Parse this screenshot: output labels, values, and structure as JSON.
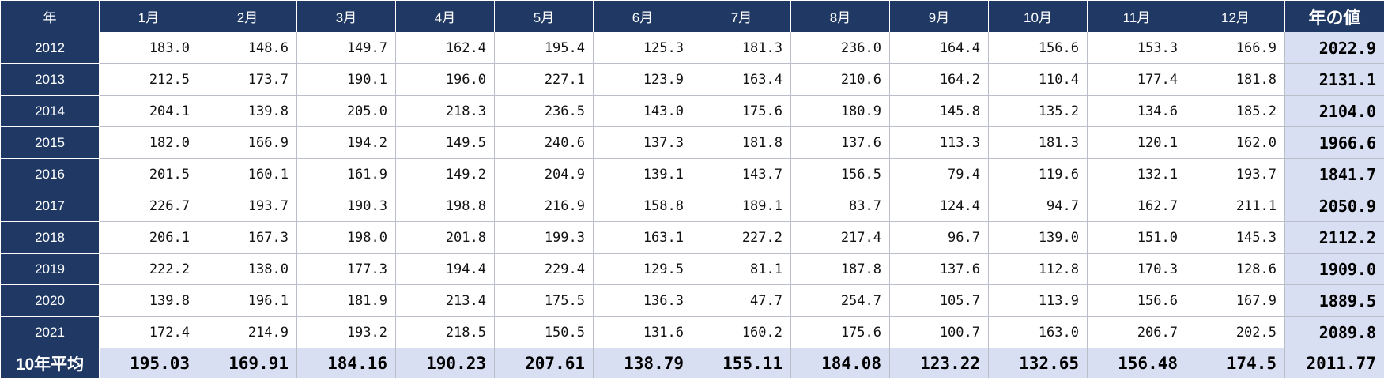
{
  "header": {
    "year_label": "年",
    "months": [
      "1月",
      "2月",
      "3月",
      "4月",
      "5月",
      "6月",
      "7月",
      "8月",
      "9月",
      "10月",
      "11月",
      "12月"
    ],
    "total_label": "年の値"
  },
  "rows": [
    {
      "year": "2012",
      "values": [
        "183.0",
        "148.6",
        "149.7",
        "162.4",
        "195.4",
        "125.3",
        "181.3",
        "236.0",
        "164.4",
        "156.6",
        "153.3",
        "166.9"
      ],
      "total": "2022.9"
    },
    {
      "year": "2013",
      "values": [
        "212.5",
        "173.7",
        "190.1",
        "196.0",
        "227.1",
        "123.9",
        "163.4",
        "210.6",
        "164.2",
        "110.4",
        "177.4",
        "181.8"
      ],
      "total": "2131.1"
    },
    {
      "year": "2014",
      "values": [
        "204.1",
        "139.8",
        "205.0",
        "218.3",
        "236.5",
        "143.0",
        "175.6",
        "180.9",
        "145.8",
        "135.2",
        "134.6",
        "185.2"
      ],
      "total": "2104.0"
    },
    {
      "year": "2015",
      "values": [
        "182.0",
        "166.9",
        "194.2",
        "149.5",
        "240.6",
        "137.3",
        "181.8",
        "137.6",
        "113.3",
        "181.3",
        "120.1",
        "162.0"
      ],
      "total": "1966.6"
    },
    {
      "year": "2016",
      "values": [
        "201.5",
        "160.1",
        "161.9",
        "149.2",
        "204.9",
        "139.1",
        "143.7",
        "156.5",
        "79.4",
        "119.6",
        "132.1",
        "193.7"
      ],
      "total": "1841.7"
    },
    {
      "year": "2017",
      "values": [
        "226.7",
        "193.7",
        "190.3",
        "198.8",
        "216.9",
        "158.8",
        "189.1",
        "83.7",
        "124.4",
        "94.7",
        "162.7",
        "211.1"
      ],
      "total": "2050.9"
    },
    {
      "year": "2018",
      "values": [
        "206.1",
        "167.3",
        "198.0",
        "201.8",
        "199.3",
        "163.1",
        "227.2",
        "217.4",
        "96.7",
        "139.0",
        "151.0",
        "145.3"
      ],
      "total": "2112.2"
    },
    {
      "year": "2019",
      "values": [
        "222.2",
        "138.0",
        "177.3",
        "194.4",
        "229.4",
        "129.5",
        "81.1",
        "187.8",
        "137.6",
        "112.8",
        "170.3",
        "128.6"
      ],
      "total": "1909.0"
    },
    {
      "year": "2020",
      "values": [
        "139.8",
        "196.1",
        "181.9",
        "213.4",
        "175.5",
        "136.3",
        "47.7",
        "254.7",
        "105.7",
        "113.9",
        "156.6",
        "167.9"
      ],
      "total": "1889.5"
    },
    {
      "year": "2021",
      "values": [
        "172.4",
        "214.9",
        "193.2",
        "218.5",
        "150.5",
        "131.6",
        "160.2",
        "175.6",
        "100.7",
        "163.0",
        "206.7",
        "202.5"
      ],
      "total": "2089.8"
    }
  ],
  "footer": {
    "label": "10年平均",
    "values": [
      "195.03",
      "169.91",
      "184.16",
      "190.23",
      "207.61",
      "138.79",
      "155.11",
      "184.08",
      "123.22",
      "132.65",
      "156.48",
      "174.5"
    ],
    "total": "2011.77"
  },
  "colors": {
    "header_bg": "#1f3864",
    "total_bg": "#d9dff2"
  }
}
